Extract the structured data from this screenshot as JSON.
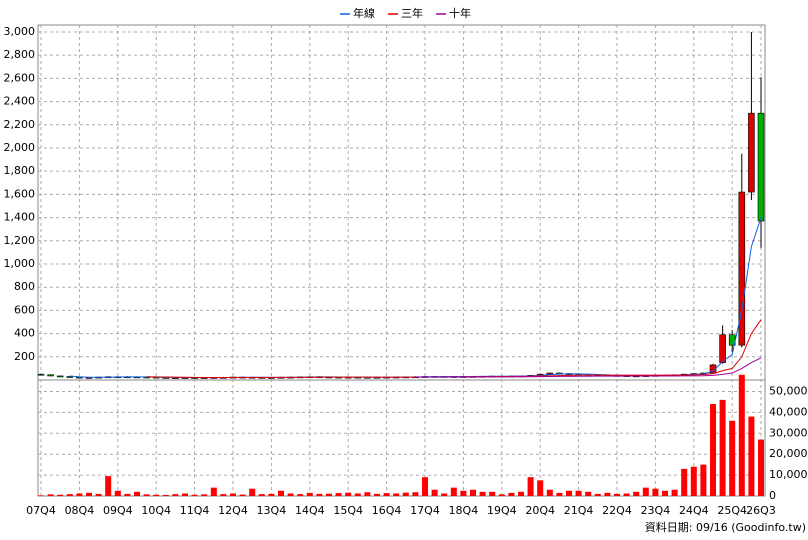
{
  "chart_data": {
    "type": "candlestick",
    "categories": [
      "07Q4",
      null,
      null,
      null,
      "08Q4",
      null,
      null,
      null,
      "09Q4",
      null,
      null,
      null,
      "10Q4",
      null,
      null,
      null,
      "11Q4",
      null,
      null,
      null,
      "12Q4",
      null,
      null,
      null,
      "13Q4",
      null,
      null,
      null,
      "14Q4",
      null,
      null,
      null,
      "15Q4",
      null,
      null,
      null,
      "16Q4",
      null,
      null,
      null,
      "17Q4",
      null,
      null,
      null,
      "18Q4",
      null,
      null,
      null,
      "19Q4",
      null,
      null,
      null,
      "20Q4",
      null,
      null,
      null,
      "21Q4",
      null,
      null,
      null,
      "22Q4",
      null,
      null,
      null,
      "23Q4",
      null,
      null,
      null,
      "24Q4",
      null,
      null,
      null,
      "25Q4",
      null,
      null,
      "26Q3"
    ],
    "open": [
      50,
      45,
      35,
      30,
      25,
      20,
      22,
      25,
      28,
      28,
      27,
      26,
      25,
      22,
      20,
      20,
      21,
      20,
      21,
      22,
      23,
      25,
      24,
      23,
      22,
      22,
      24,
      25,
      27,
      28,
      26,
      25,
      24,
      25,
      24,
      23,
      24,
      25,
      26,
      27,
      28,
      30,
      31,
      30,
      29,
      30,
      31,
      32,
      33,
      33,
      34,
      35,
      40,
      50,
      60,
      55,
      50,
      48,
      45,
      42,
      40,
      38,
      36,
      35,
      38,
      40,
      42,
      45,
      50,
      55,
      60,
      150,
      390,
      300,
      1620,
      2300
    ],
    "high": [
      54,
      49,
      39,
      34,
      29,
      26,
      29,
      32,
      32,
      32,
      31,
      30,
      29,
      26,
      24,
      25,
      25,
      25,
      26,
      27,
      29,
      29,
      28,
      27,
      26,
      28,
      29,
      31,
      32,
      32,
      30,
      29,
      29,
      29,
      28,
      28,
      29,
      30,
      31,
      32,
      34,
      35,
      35,
      34,
      34,
      35,
      36,
      37,
      37,
      38,
      39,
      44,
      54,
      64,
      64,
      59,
      54,
      52,
      49,
      46,
      44,
      42,
      40,
      42,
      44,
      46,
      49,
      54,
      59,
      64,
      140,
      470,
      430,
      1950,
      3000,
      2610
    ],
    "low": [
      41,
      31,
      26,
      21,
      16,
      16,
      18,
      21,
      24,
      23,
      22,
      21,
      18,
      16,
      16,
      16,
      16,
      16,
      17,
      18,
      19,
      20,
      19,
      18,
      18,
      18,
      20,
      21,
      23,
      22,
      21,
      20,
      20,
      20,
      19,
      19,
      20,
      21,
      22,
      23,
      24,
      26,
      26,
      25,
      25,
      26,
      27,
      28,
      29,
      29,
      30,
      31,
      36,
      46,
      51,
      46,
      44,
      41,
      38,
      36,
      34,
      32,
      31,
      31,
      34,
      36,
      38,
      41,
      46,
      51,
      55,
      140,
      240,
      280,
      1550,
      1140
    ],
    "close": [
      45,
      35,
      30,
      25,
      20,
      22,
      25,
      28,
      28,
      27,
      26,
      25,
      22,
      20,
      20,
      21,
      20,
      21,
      22,
      23,
      25,
      24,
      23,
      22,
      22,
      24,
      25,
      27,
      28,
      26,
      25,
      24,
      25,
      24,
      23,
      24,
      25,
      26,
      27,
      28,
      30,
      31,
      30,
      29,
      30,
      31,
      32,
      33,
      33,
      34,
      35,
      40,
      50,
      60,
      55,
      50,
      48,
      45,
      42,
      40,
      38,
      36,
      35,
      38,
      40,
      42,
      45,
      50,
      55,
      60,
      130,
      390,
      300,
      1620,
      2300,
      1370
    ],
    "up_color": "#e00000",
    "down_color": "#00b000",
    "series": [
      {
        "name": "年線",
        "color": "#1060e0",
        "values": [
          null,
          null,
          null,
          34,
          28,
          24,
          24,
          24,
          26,
          27,
          27,
          27,
          25,
          23,
          22,
          21,
          21,
          21,
          21,
          21,
          23,
          23,
          24,
          24,
          23,
          23,
          23,
          24,
          26,
          27,
          27,
          26,
          25,
          25,
          24,
          24,
          24,
          24,
          25,
          26,
          28,
          29,
          30,
          30,
          30,
          30,
          31,
          32,
          32,
          33,
          34,
          36,
          40,
          46,
          51,
          54,
          53,
          51,
          47,
          44,
          41,
          39,
          37,
          37,
          37,
          39,
          41,
          44,
          48,
          53,
          74,
          159,
          220,
          600,
          1150,
          1400
        ]
      },
      {
        "name": "三年",
        "color": "#e00000",
        "values": [
          null,
          null,
          null,
          null,
          null,
          null,
          null,
          null,
          null,
          null,
          null,
          28,
          27,
          26,
          25,
          24,
          23,
          22,
          22,
          22,
          22,
          22,
          22,
          22,
          23,
          23,
          23,
          24,
          24,
          25,
          25,
          25,
          25,
          25,
          25,
          25,
          25,
          25,
          25,
          25,
          26,
          26,
          27,
          27,
          28,
          28,
          29,
          29,
          30,
          30,
          31,
          32,
          34,
          36,
          38,
          40,
          41,
          42,
          42,
          42,
          42,
          42,
          42,
          42,
          42,
          42,
          42,
          43,
          44,
          46,
          55,
          80,
          100,
          200,
          400,
          520
        ]
      },
      {
        "name": "十年",
        "color": "#a000a0",
        "values": [
          null,
          null,
          null,
          null,
          null,
          null,
          null,
          null,
          null,
          null,
          null,
          null,
          null,
          null,
          null,
          null,
          null,
          null,
          null,
          null,
          null,
          null,
          null,
          null,
          null,
          null,
          null,
          null,
          null,
          null,
          null,
          null,
          null,
          null,
          null,
          null,
          null,
          null,
          null,
          26,
          26,
          26,
          26,
          26,
          26,
          27,
          27,
          27,
          27,
          27,
          28,
          28,
          29,
          30,
          31,
          31,
          32,
          32,
          33,
          33,
          33,
          34,
          34,
          34,
          34,
          35,
          35,
          36,
          36,
          37,
          40,
          48,
          60,
          100,
          150,
          190
        ]
      }
    ],
    "volume": {
      "color": "#ff0000",
      "values": [
        300,
        800,
        600,
        900,
        1200,
        1500,
        1000,
        9500,
        2500,
        1000,
        2000,
        800,
        600,
        500,
        900,
        1200,
        600,
        800,
        4000,
        900,
        1200,
        700,
        3500,
        900,
        1000,
        2500,
        1200,
        900,
        1500,
        1000,
        1100,
        1400,
        1600,
        1200,
        1800,
        1000,
        1400,
        1200,
        1600,
        1800,
        9000,
        3000,
        1200,
        4000,
        2500,
        3000,
        2000,
        2000,
        800,
        1500,
        2000,
        9000,
        7500,
        3000,
        1500,
        2500,
        2500,
        2000,
        1000,
        1500,
        1000,
        1200,
        2000,
        4000,
        3500,
        2500,
        3000,
        13000,
        14000,
        15000,
        44000,
        46000,
        36000,
        58000,
        38000,
        27000
      ]
    },
    "ylim": [
      0,
      3060
    ],
    "yticks": [
      200,
      400,
      600,
      800,
      {
        "value": 1000,
        "label": "1,000"
      },
      {
        "value": 1200,
        "label": "1,200"
      },
      {
        "value": 1400,
        "label": "1,400"
      },
      {
        "value": 1600,
        "label": "1,600"
      },
      {
        "value": 1800,
        "label": "1,800"
      },
      {
        "value": 2000,
        "label": "2,000"
      },
      {
        "value": 2200,
        "label": "2,200"
      },
      {
        "value": 2400,
        "label": "2,400"
      },
      {
        "value": 2600,
        "label": "2,600"
      },
      {
        "value": 2800,
        "label": "2,800"
      },
      {
        "value": 3000,
        "label": "3,000"
      }
    ],
    "y2lim": [
      0,
      55500
    ],
    "y2ticks": [
      0,
      {
        "value": 10000,
        "label": "10,000"
      },
      {
        "value": 20000,
        "label": "20,000"
      },
      {
        "value": 30000,
        "label": "30,000"
      },
      {
        "value": 40000,
        "label": "40,000"
      },
      {
        "value": 50000,
        "label": "50,000"
      }
    ],
    "grid": true,
    "source_note": "資料日期: 09/16 (Goodinfo.tw)"
  }
}
